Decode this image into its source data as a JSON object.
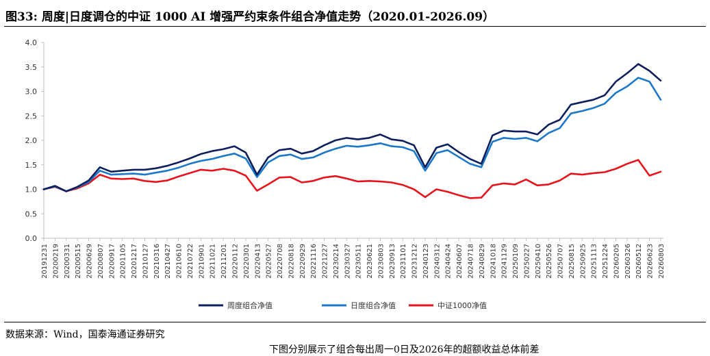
{
  "figure": {
    "title": "图33:  周度|日度调仓的中证 1000 AI 增强严约束条件组合净值走势（2020.01-2026.09）",
    "source": "数据来源：Wind，国泰海通证券研究",
    "footnote": "下图分别展示了组合每出周一0日及2026年的超额收益总体前差"
  },
  "chart_data": {
    "type": "line",
    "title": "",
    "xlabel": "",
    "ylabel": "",
    "ylim": [
      0,
      4
    ],
    "yticks": [
      "0.0",
      "0.5",
      "1.0",
      "1.5",
      "2.0",
      "2.5",
      "3.0",
      "3.5",
      "4.0"
    ],
    "grid": false,
    "legend_position": "bottom",
    "x": [
      "20191231",
      "20200219",
      "20200331",
      "20200515",
      "20200629",
      "20200807",
      "20200917",
      "20201105",
      "20201217",
      "20210127",
      "20210316",
      "20210427",
      "20210610",
      "20210722",
      "20210901",
      "20211021",
      "20211201",
      "20220112",
      "20220301",
      "20220413",
      "20220527",
      "20220708",
      "20220818",
      "20220929",
      "20221116",
      "20221227",
      "20230214",
      "20230327",
      "20230511",
      "20230621",
      "20230803",
      "20230913",
      "20231101",
      "20231212",
      "20240123",
      "20240312",
      "20240424",
      "20240607",
      "20240718",
      "20240829",
      "20241018",
      "20241129",
      "20250109",
      "20250227",
      "20250410",
      "20250526",
      "20250707",
      "20250815",
      "20250925",
      "20251113",
      "20251224",
      "20260205",
      "20260326",
      "20260512",
      "20260623",
      "20260803"
    ],
    "series": [
      {
        "name": "周度组合净值",
        "color": "#0d1f5c",
        "values": [
          1.0,
          1.07,
          0.96,
          1.05,
          1.18,
          1.45,
          1.36,
          1.38,
          1.4,
          1.4,
          1.43,
          1.48,
          1.55,
          1.63,
          1.72,
          1.78,
          1.82,
          1.88,
          1.75,
          1.3,
          1.65,
          1.8,
          1.83,
          1.73,
          1.78,
          1.9,
          2.0,
          2.05,
          2.02,
          2.05,
          2.12,
          2.02,
          1.99,
          1.9,
          1.45,
          1.85,
          1.92,
          1.76,
          1.62,
          1.52,
          2.1,
          2.2,
          2.18,
          2.18,
          2.12,
          2.32,
          2.42,
          2.73,
          2.78,
          2.83,
          2.92,
          3.2,
          3.37,
          3.56,
          3.42,
          3.22
        ]
      },
      {
        "name": "日度组合净值",
        "color": "#1a77c9",
        "values": [
          1.0,
          1.06,
          0.96,
          1.04,
          1.15,
          1.38,
          1.3,
          1.31,
          1.32,
          1.3,
          1.34,
          1.38,
          1.44,
          1.52,
          1.58,
          1.62,
          1.68,
          1.73,
          1.63,
          1.25,
          1.55,
          1.68,
          1.71,
          1.62,
          1.65,
          1.75,
          1.83,
          1.89,
          1.87,
          1.9,
          1.94,
          1.88,
          1.86,
          1.78,
          1.38,
          1.74,
          1.8,
          1.66,
          1.52,
          1.45,
          1.97,
          2.05,
          2.03,
          2.05,
          1.98,
          2.15,
          2.25,
          2.55,
          2.6,
          2.66,
          2.75,
          2.97,
          3.1,
          3.28,
          3.2,
          2.83
        ]
      },
      {
        "name": "中证1000净值",
        "color": "#e8131b",
        "values": [
          1.0,
          1.05,
          0.96,
          1.02,
          1.12,
          1.3,
          1.22,
          1.21,
          1.22,
          1.17,
          1.15,
          1.18,
          1.26,
          1.33,
          1.4,
          1.38,
          1.42,
          1.38,
          1.28,
          0.97,
          1.1,
          1.24,
          1.25,
          1.14,
          1.17,
          1.24,
          1.27,
          1.22,
          1.16,
          1.17,
          1.16,
          1.14,
          1.09,
          1.0,
          0.84,
          1.0,
          0.95,
          0.88,
          0.82,
          0.83,
          1.08,
          1.12,
          1.1,
          1.2,
          1.08,
          1.1,
          1.18,
          1.32,
          1.3,
          1.33,
          1.35,
          1.42,
          1.52,
          1.6,
          1.28,
          1.36
        ]
      }
    ]
  }
}
